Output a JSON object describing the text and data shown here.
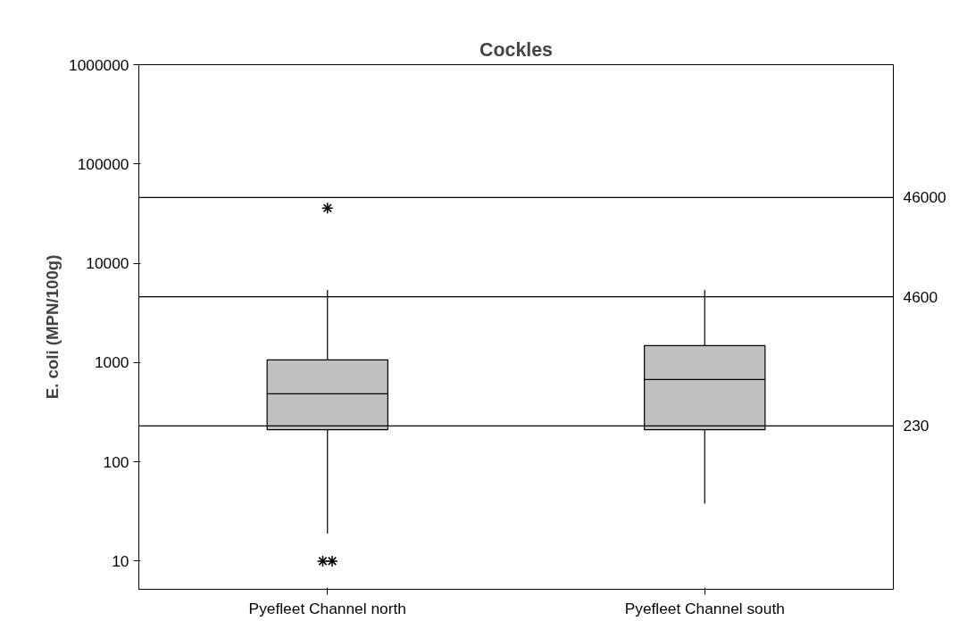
{
  "chart_data": {
    "type": "box",
    "title": "Cockles",
    "ylabel": "E. coli (MPN/100g)",
    "categories": [
      "Pyefleet Channel north",
      "Pyefleet Channel south"
    ],
    "boxes": [
      {
        "low": 19,
        "q1": 211,
        "median": 484,
        "q3": 1064,
        "high": 5370,
        "outliers": [
          36000,
          10,
          10
        ]
      },
      {
        "low": 38,
        "q1": 211,
        "median": 675,
        "q3": 1480,
        "high": 5370
      }
    ],
    "color": "#c0c0c0",
    "log": true,
    "ylim": [
      5.2,
      1000000
    ],
    "yticks": [
      10,
      100,
      1000,
      10000,
      100000,
      1000000
    ],
    "marker": "asterisk",
    "grid": false,
    "ref_lines": [
      {
        "axis": "y",
        "value": 46000,
        "label": "46000"
      },
      {
        "axis": "y",
        "value": 4600,
        "label": "4600"
      },
      {
        "axis": "y",
        "value": 230,
        "label": "230"
      }
    ]
  }
}
